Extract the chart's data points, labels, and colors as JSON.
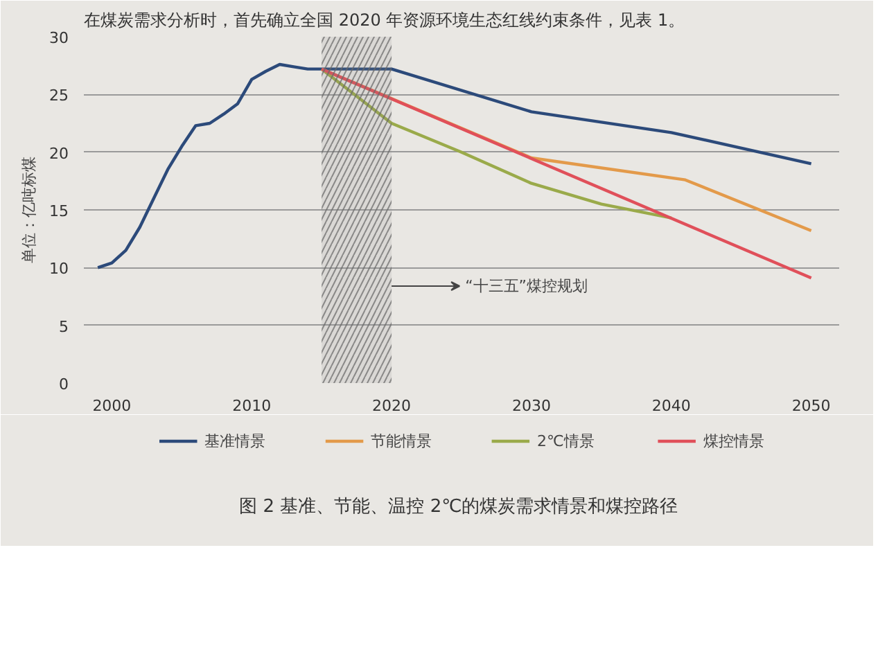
{
  "chart_data": {
    "type": "line",
    "title": "图 2  基准、节能、温控 2℃的煤炭需求情景和煤控路径",
    "ylabel": "单位：亿吨标煤",
    "annotations": [
      "在煤炭需求分析时，首先确立全国 2020 年资源环境生态红线约束条件，见表 1。"
    ],
    "series": [
      {
        "name": "基准情景",
        "color": "#2c4a7a",
        "x": [
          1999,
          2000,
          2001,
          2002,
          2003,
          2004,
          2005,
          2006,
          2007,
          2008,
          2009,
          2010,
          2011,
          2012,
          2013,
          2014,
          2015,
          2020,
          2030,
          2040,
          2050
        ],
        "values": [
          10.0,
          10.4,
          11.5,
          13.5,
          16.0,
          18.5,
          20.5,
          22.3,
          22.5,
          23.3,
          24.2,
          26.3,
          27.0,
          27.6,
          27.4,
          27.2,
          27.2,
          27.2,
          23.5,
          21.7,
          19.0
        ]
      },
      {
        "name": "节能情景",
        "color": "#e39a4a",
        "x": [
          2015,
          2030,
          2041,
          2050
        ],
        "values": [
          27.2,
          19.5,
          17.6,
          13.2
        ]
      },
      {
        "name": "2℃情景",
        "color": "#9aaa4a",
        "x": [
          2015,
          2020,
          2025,
          2030,
          2035,
          2040
        ],
        "values": [
          27.2,
          22.5,
          20.0,
          17.3,
          15.5,
          14.3
        ]
      },
      {
        "name": "煤控情景",
        "color": "#e0505a",
        "x": [
          2015,
          2050
        ],
        "values": [
          27.2,
          9.1
        ]
      }
    ],
    "xlim": [
      1998,
      2052
    ],
    "xticks": [
      2000,
      2010,
      2020,
      2030,
      2040,
      2050
    ],
    "ylim": [
      0,
      30
    ],
    "yticks": [
      0,
      5,
      10,
      15,
      20,
      25,
      30
    ],
    "grid": "y",
    "legend": "bottom",
    "marker": "none",
    "line_style": "solid",
    "bands": [
      {
        "axis": "x",
        "from": 2015,
        "to": 2020,
        "label": "“十三五”煤控规划",
        "color": "#888888"
      }
    ]
  }
}
